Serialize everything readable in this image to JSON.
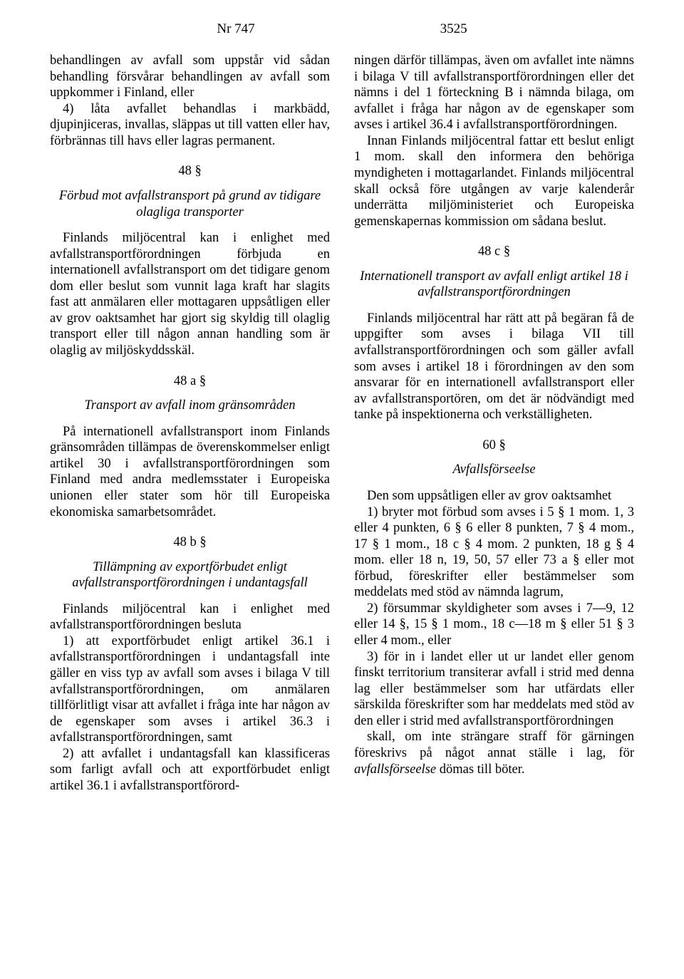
{
  "header": {
    "nr": "Nr 747",
    "page": "3525"
  },
  "left": {
    "p1": "behandlingen av avfall som uppstår vid sådan behandling försvårar behandlingen av avfall som uppkommer i Finland, eller",
    "p2": "4) låta avfallet behandlas i markbädd, djupinjiceras, invallas, släppas ut till vatten eller hav, förbrännas till havs eller lagras permanent.",
    "s48_num": "48 §",
    "s48_title": "Förbud mot avfallstransport på grund av tidigare olagliga transporter",
    "s48_body": "Finlands miljöcentral kan i enlighet med avfallstransportförordningen förbjuda en internationell avfallstransport om det tidigare genom dom eller beslut som vunnit laga kraft har slagits fast att anmälaren eller mottagaren uppsåtligen eller av grov oaktsamhet har gjort sig skyldig till olaglig transport eller till någon annan handling som är olaglig av miljöskyddsskäl.",
    "s48a_num": "48 a §",
    "s48a_title": "Transport av avfall inom gränsområden",
    "s48a_body": "På internationell avfallstransport inom Finlands gränsområden tillämpas de överenskommelser enligt artikel 30 i avfallstransportförordningen som Finland med andra medlemsstater i Europeiska unionen eller stater som hör till Europeiska ekonomiska samarbetsområdet.",
    "s48b_num": "48 b §",
    "s48b_title": "Tillämpning av exportförbudet enligt avfallstransportförordningen i undantagsfall",
    "s48b_p1": "Finlands miljöcentral kan i enlighet med avfallstransportförordningen besluta",
    "s48b_p2": "1) att exportförbudet enligt artikel 36.1 i avfallstransportförordningen i undantagsfall inte gäller en viss typ av avfall som avses i bilaga V till avfallstransportförordningen, om anmälaren tillförlitligt visar att avfallet i fråga inte har någon av de egenskaper som avses i artikel 36.3 i avfallstransportförordningen, samt",
    "s48b_p3": "2) att avfallet i undantagsfall kan klassificeras som farligt avfall och att exportförbudet enligt artikel 36.1 i avfallstransportförord-"
  },
  "right": {
    "p1": "ningen därför tillämpas, även om avfallet inte nämns i bilaga V till avfallstransportförordningen eller det nämns i del 1 förteckning B i nämnda bilaga, om avfallet i fråga har någon av de egenskaper som avses i artikel 36.4 i avfallstransportförordningen.",
    "p2": "Innan Finlands miljöcentral fattar ett beslut enligt 1 mom. skall den informera den behöriga myndigheten i mottagarlandet. Finlands miljöcentral skall också före utgången av varje kalenderår underrätta miljöministeriet och Europeiska gemenskapernas kommission om sådana beslut.",
    "s48c_num": "48 c §",
    "s48c_title": "Internationell transport av avfall enligt artikel 18 i avfallstransportförordningen",
    "s48c_body": "Finlands miljöcentral har rätt att på begäran få de uppgifter som avses i bilaga VII till avfallstransportförordningen och som gäller avfall som avses i artikel 18 i förordningen av den som ansvarar för en internationell avfallstransport eller av avfallstransportören, om det är nödvändigt med tanke på inspektionerna och verkställigheten.",
    "s60_num": "60 §",
    "s60_title": "Avfallsförseelse",
    "s60_p1": "Den som uppsåtligen eller av grov oaktsamhet",
    "s60_p2": "1) bryter mot förbud som avses i 5 § 1 mom. 1, 3 eller 4 punkten, 6 § 6 eller 8 punkten, 7 § 4 mom., 17 § 1 mom., 18 c § 4 mom. 2 punkten, 18 g § 4 mom. eller 18 n, 19, 50, 57 eller 73 a § eller mot förbud, föreskrifter eller bestämmelser som meddelats med stöd av nämnda lagrum,",
    "s60_p3": "2) försummar skyldigheter som avses i 7—9, 12 eller 14 §, 15 § 1 mom., 18 c—18 m § eller 51 § 3 eller 4 mom., eller",
    "s60_p4": "3) för in i landet eller ut ur landet eller genom finskt territorium transiterar avfall i strid med denna lag eller bestämmelser som har utfärdats eller särskilda föreskrifter som har meddelats med stöd av den eller i strid med avfallstransportförordningen",
    "s60_p5a": "skall, om inte strängare straff för gärningen föreskrivs på något annat ställe i lag, för ",
    "s60_p5b": "avfallsförseelse",
    "s60_p5c": " dömas till böter."
  }
}
